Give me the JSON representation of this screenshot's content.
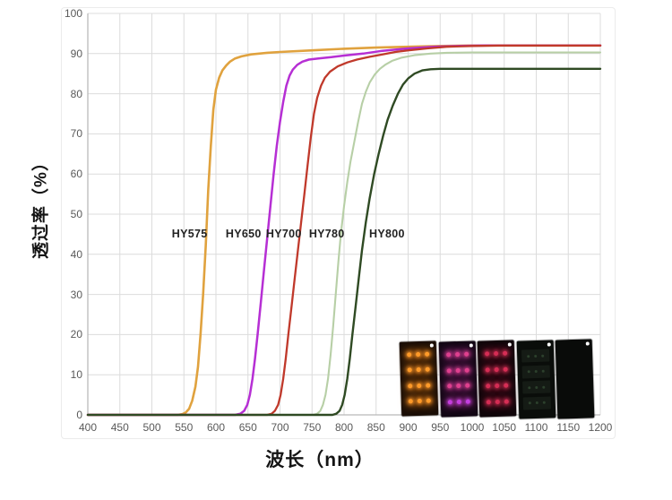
{
  "page": {
    "background": "#ffffff"
  },
  "chart_data": {
    "type": "line",
    "title": "",
    "xlabel": "波长（nm）",
    "ylabel": "透过率（%）",
    "xlim": [
      400,
      1200
    ],
    "ylim": [
      0,
      100
    ],
    "grid": true,
    "legend_position": "none",
    "x_ticks": [
      400,
      450,
      500,
      550,
      600,
      650,
      700,
      750,
      800,
      850,
      900,
      950,
      1000,
      1050,
      1100,
      1150,
      1200
    ],
    "y_ticks": [
      0,
      10,
      20,
      30,
      40,
      50,
      60,
      70,
      80,
      90,
      100
    ],
    "grid_color": "#dcdcdc",
    "axis_color": "#b9b9b9",
    "tick_color": "#595959",
    "series": [
      {
        "name": "HY575",
        "color": "#e0a23e",
        "width": 2.6,
        "points": [
          [
            400,
            0
          ],
          [
            540,
            0
          ],
          [
            548,
            0.2
          ],
          [
            553,
            0.6
          ],
          [
            558,
            1.5
          ],
          [
            563,
            3.5
          ],
          [
            568,
            7
          ],
          [
            572,
            12
          ],
          [
            576,
            20
          ],
          [
            580,
            30
          ],
          [
            584,
            42
          ],
          [
            588,
            56
          ],
          [
            592,
            67
          ],
          [
            596,
            76
          ],
          [
            600,
            81
          ],
          [
            605,
            84
          ],
          [
            610,
            85.8
          ],
          [
            616,
            87
          ],
          [
            622,
            88
          ],
          [
            630,
            88.8
          ],
          [
            640,
            89.3
          ],
          [
            655,
            89.8
          ],
          [
            680,
            90.2
          ],
          [
            700,
            90.4
          ],
          [
            750,
            90.8
          ],
          [
            800,
            91.2
          ],
          [
            850,
            91.5
          ],
          [
            900,
            91.7
          ],
          [
            950,
            91.9
          ],
          [
            1000,
            92
          ],
          [
            1100,
            92
          ],
          [
            1200,
            92
          ]
        ]
      },
      {
        "name": "HY650",
        "color": "#b62fd4",
        "width": 2.5,
        "points": [
          [
            400,
            0
          ],
          [
            630,
            0
          ],
          [
            638,
            0.3
          ],
          [
            644,
            1
          ],
          [
            649,
            2.5
          ],
          [
            653,
            5
          ],
          [
            657,
            9
          ],
          [
            661,
            14
          ],
          [
            665,
            20
          ],
          [
            670,
            28
          ],
          [
            675,
            36
          ],
          [
            680,
            44
          ],
          [
            685,
            52
          ],
          [
            690,
            60
          ],
          [
            695,
            67
          ],
          [
            700,
            73
          ],
          [
            705,
            78
          ],
          [
            710,
            82
          ],
          [
            715,
            84.5
          ],
          [
            720,
            86
          ],
          [
            727,
            87.2
          ],
          [
            735,
            88
          ],
          [
            745,
            88.5
          ],
          [
            760,
            88.8
          ],
          [
            780,
            89.1
          ],
          [
            800,
            89.5
          ],
          [
            830,
            90
          ],
          [
            860,
            90.7
          ],
          [
            900,
            91.3
          ],
          [
            940,
            91.7
          ],
          [
            980,
            91.9
          ],
          [
            1020,
            92
          ],
          [
            1100,
            92
          ],
          [
            1200,
            92
          ]
        ]
      },
      {
        "name": "HY700",
        "color": "#c0392b",
        "width": 2.3,
        "points": [
          [
            400,
            0
          ],
          [
            680,
            0
          ],
          [
            687,
            0.3
          ],
          [
            692,
            1
          ],
          [
            697,
            2.5
          ],
          [
            701,
            5
          ],
          [
            705,
            9
          ],
          [
            709,
            14
          ],
          [
            713,
            20
          ],
          [
            718,
            27
          ],
          [
            723,
            34
          ],
          [
            728,
            41
          ],
          [
            733,
            48
          ],
          [
            738,
            55
          ],
          [
            743,
            62
          ],
          [
            748,
            69
          ],
          [
            753,
            75
          ],
          [
            758,
            79
          ],
          [
            764,
            82
          ],
          [
            770,
            84
          ],
          [
            778,
            85.5
          ],
          [
            790,
            86.8
          ],
          [
            805,
            87.8
          ],
          [
            820,
            88.5
          ],
          [
            840,
            89.2
          ],
          [
            860,
            89.8
          ],
          [
            880,
            90.4
          ],
          [
            900,
            90.8
          ],
          [
            930,
            91.3
          ],
          [
            960,
            91.7
          ],
          [
            1000,
            91.9
          ],
          [
            1040,
            92
          ],
          [
            1100,
            92
          ],
          [
            1200,
            92
          ]
        ]
      },
      {
        "name": "HY780",
        "color": "#b7cfa6",
        "width": 2.1,
        "points": [
          [
            400,
            0
          ],
          [
            752,
            0
          ],
          [
            758,
            0.3
          ],
          [
            763,
            1
          ],
          [
            767,
            2.5
          ],
          [
            771,
            5
          ],
          [
            775,
            9
          ],
          [
            779,
            15
          ],
          [
            783,
            22
          ],
          [
            787,
            30
          ],
          [
            791,
            38
          ],
          [
            795,
            45
          ],
          [
            800,
            52
          ],
          [
            805,
            58
          ],
          [
            810,
            63
          ],
          [
            816,
            68
          ],
          [
            822,
            73
          ],
          [
            828,
            77.5
          ],
          [
            834,
            80.5
          ],
          [
            840,
            82.8
          ],
          [
            848,
            84.8
          ],
          [
            856,
            86.2
          ],
          [
            865,
            87.3
          ],
          [
            875,
            88.2
          ],
          [
            890,
            89
          ],
          [
            910,
            89.6
          ],
          [
            935,
            90
          ],
          [
            960,
            90.2
          ],
          [
            1000,
            90.3
          ],
          [
            1100,
            90.3
          ],
          [
            1200,
            90.3
          ]
        ]
      },
      {
        "name": "HY800",
        "color": "#2f4a23",
        "width": 2.4,
        "points": [
          [
            400,
            0
          ],
          [
            782,
            0
          ],
          [
            788,
            0.3
          ],
          [
            793,
            1
          ],
          [
            797,
            2.5
          ],
          [
            801,
            5
          ],
          [
            805,
            9
          ],
          [
            809,
            14
          ],
          [
            813,
            20
          ],
          [
            818,
            27
          ],
          [
            823,
            34
          ],
          [
            828,
            41
          ],
          [
            834,
            48
          ],
          [
            840,
            54
          ],
          [
            847,
            60
          ],
          [
            854,
            65
          ],
          [
            861,
            69.5
          ],
          [
            868,
            73.5
          ],
          [
            876,
            77
          ],
          [
            884,
            80
          ],
          [
            892,
            82.3
          ],
          [
            900,
            83.8
          ],
          [
            910,
            85
          ],
          [
            922,
            85.8
          ],
          [
            935,
            86.1
          ],
          [
            950,
            86.2
          ],
          [
            1000,
            86.2
          ],
          [
            1100,
            86.2
          ],
          [
            1200,
            86.2
          ]
        ]
      }
    ],
    "annotations": [
      {
        "text": "HY575",
        "x": 559,
        "y": 45
      },
      {
        "text": "HY650",
        "x": 643,
        "y": 45
      },
      {
        "text": "HY700",
        "x": 706,
        "y": 45
      },
      {
        "text": "HY780",
        "x": 773,
        "y": 45
      },
      {
        "text": "HY800",
        "x": 867,
        "y": 45
      }
    ]
  },
  "samples": {
    "description": "filter sample photos over LED board",
    "corner_dot_color": "#ffffff",
    "items": [
      {
        "name": "filter-photo-hy575",
        "style": "dots",
        "bg": "#1a0e06",
        "dot": "#ff9b2a",
        "glow": "#ff8c1e99"
      },
      {
        "name": "filter-photo-hy650",
        "style": "dots",
        "bg": "#120714",
        "dot": "#e0408e",
        "glow": "#d93fb788",
        "last_row_dot": "#c43fe0"
      },
      {
        "name": "filter-photo-hy700",
        "style": "dots",
        "bg": "#10060a",
        "dot": "#d62e55",
        "glow": "#c7254d77"
      },
      {
        "name": "filter-photo-hy780",
        "style": "bars",
        "bg": "#0a0d0a",
        "bar": "#151b15",
        "dot": "#2c402c"
      },
      {
        "name": "filter-photo-hy800",
        "style": "blank",
        "bg": "#090b09"
      }
    ]
  }
}
